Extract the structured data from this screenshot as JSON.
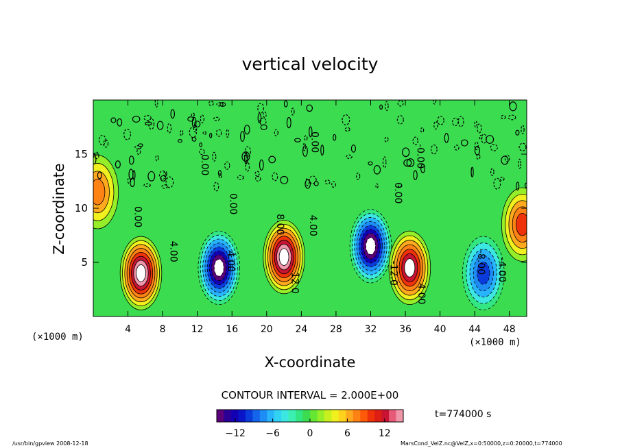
{
  "chart_data": {
    "type": "heatmap",
    "title": "vertical velocity",
    "xlabel": "X-coordinate",
    "ylabel": "Z-coordinate",
    "x_unit_left": "(×1000 m)",
    "x_unit_right": "(×1000 m)",
    "xlim": [
      0,
      50
    ],
    "ylim": [
      0,
      20
    ],
    "x_ticks": [
      4,
      8,
      12,
      16,
      20,
      24,
      28,
      32,
      36,
      40,
      44,
      48
    ],
    "y_ticks": [
      5,
      10,
      15
    ],
    "contour_interval_label": "CONTOUR INTERVAL = 2.000E+00",
    "time_label": "t=774000 s",
    "colorbar": {
      "min": -15,
      "max": 15,
      "ticks": [
        -12,
        -6,
        0,
        6,
        12
      ],
      "colors": [
        "#5a0078",
        "#2b0096",
        "#1400b4",
        "#0a14c8",
        "#0a3cdc",
        "#1464ec",
        "#1e8cf5",
        "#28b4fa",
        "#32d2f5",
        "#3ce6e1",
        "#3cf0b4",
        "#32e682",
        "#3cdc50",
        "#64e632",
        "#96ee28",
        "#c8f01e",
        "#f0f01e",
        "#ffd21e",
        "#ffaa1e",
        "#ff8214",
        "#ff5a0a",
        "#f0320a",
        "#dc1e14",
        "#c81432",
        "#e65a78",
        "#f096aa"
      ]
    },
    "contour_labels": [
      {
        "text": "0.00",
        "x": 12.5,
        "z": 14.0
      },
      {
        "text": "0.00",
        "x": 4.8,
        "z": 9.2
      },
      {
        "text": "0.00",
        "x": 15.8,
        "z": 10.4
      },
      {
        "text": "0.00",
        "x": 25.2,
        "z": 16.1
      },
      {
        "text": "0.00",
        "x": 34.8,
        "z": 11.4
      },
      {
        "text": "-0.00",
        "x": 37.4,
        "z": 14.8
      },
      {
        "text": "4.00",
        "x": 8.9,
        "z": 6.0
      },
      {
        "text": "4.00",
        "x": 15.5,
        "z": 5.1
      },
      {
        "text": "8.00",
        "x": 21.2,
        "z": 8.5
      },
      {
        "text": "4.00",
        "x": 25.0,
        "z": 8.4
      },
      {
        "text": "12.0",
        "x": 22.9,
        "z": 3.1
      },
      {
        "text": "-12.0",
        "x": 34.3,
        "z": 4.0
      },
      {
        "text": "4.00",
        "x": 37.5,
        "z": 2.1
      },
      {
        "text": "-8.00",
        "x": 44.4,
        "z": 5.0
      },
      {
        "text": "-4.00",
        "x": 46.8,
        "z": 4.3
      }
    ],
    "features": [
      {
        "kind": "updraft",
        "x": 5.5,
        "z": 4.0,
        "peak": 16
      },
      {
        "kind": "downdraft",
        "x": 14.5,
        "z": 4.5,
        "peak": -16
      },
      {
        "kind": "updraft",
        "x": 22.0,
        "z": 5.5,
        "peak": 16
      },
      {
        "kind": "downdraft",
        "x": 32.0,
        "z": 6.5,
        "peak": -16
      },
      {
        "kind": "updraft",
        "x": 36.5,
        "z": 4.5,
        "peak": 14
      },
      {
        "kind": "downdraft",
        "x": 45.0,
        "z": 4.0,
        "peak": -10
      },
      {
        "kind": "updraft",
        "x": 49.5,
        "z": 8.5,
        "peak": 9
      },
      {
        "kind": "updraft",
        "x": 0.5,
        "z": 11.5,
        "peak": 8
      }
    ]
  },
  "footer": {
    "left": "/usr/bin/gpview  2008-12-18",
    "right": "MarsCond_VelZ.nc@VelZ,x=0:50000,z=0:20000,t=774000"
  }
}
